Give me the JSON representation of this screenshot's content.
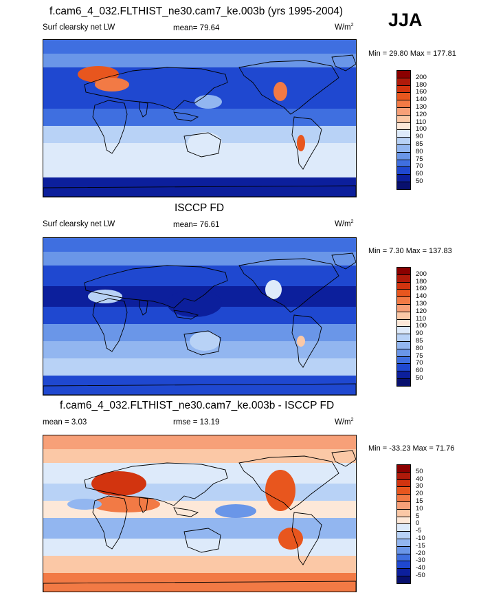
{
  "season": "JJA",
  "panels": [
    {
      "title": "f.cam6_4_032.FLTHIST_ne30.cam7_ke.003b (yrs 1995-2004)",
      "left_label": "Surf clearsky net LW",
      "center_label": "mean=  79.64",
      "units": "W/m",
      "units_sup": "2",
      "minmax": "Min =  29.80 Max = 177.81",
      "colorbar_levels": [
        "200",
        "180",
        "160",
        "140",
        "130",
        "120",
        "110",
        "100",
        "90",
        "85",
        "80",
        "75",
        "70",
        "60",
        "50"
      ]
    },
    {
      "title": "ISCCP FD",
      "left_label": "Surf clearsky net LW",
      "center_label": "mean=  76.61",
      "units": "W/m",
      "units_sup": "2",
      "minmax": "Min =   7.30 Max = 137.83",
      "colorbar_levels": [
        "200",
        "180",
        "160",
        "140",
        "130",
        "120",
        "110",
        "100",
        "90",
        "85",
        "80",
        "75",
        "70",
        "60",
        "50"
      ]
    },
    {
      "title": "f.cam6_4_032.FLTHIST_ne30.cam7_ke.003b - ISCCP FD",
      "left_label": "mean =   3.03",
      "center_label": "rmse =  13.19",
      "units": "W/m",
      "units_sup": "2",
      "minmax": "Min = -33.23 Max =  71.76",
      "colorbar_levels": [
        "50",
        "40",
        "30",
        "20",
        "15",
        "10",
        "5",
        "0",
        "-5",
        "-10",
        "-15",
        "-20",
        "-30",
        "-40",
        "-50"
      ]
    }
  ],
  "colors": {
    "scale": [
      "#8b0000",
      "#b01a0a",
      "#d2340f",
      "#e8561e",
      "#f27a45",
      "#f7a078",
      "#fbc8a6",
      "#fde8d8",
      "#ddeafa",
      "#b8d2f6",
      "#92b6f0",
      "#6a96e8",
      "#3f6fe0",
      "#1f48d0",
      "#0c1f9c",
      "#08106e"
    ],
    "ocean_cool": "#2f5fdc",
    "ocean_mid": "#6f98ea",
    "ocean_pale": "#c9dcf8",
    "land": "#e7efff"
  },
  "chart_data": [
    {
      "type": "heatmap",
      "title": "f.cam6_4_032.FLTHIST_ne30.cam7_ke.003b (yrs 1995-2004)",
      "variable": "Surf clearsky net LW",
      "units": "W/m2",
      "mean": 79.64,
      "min": 29.8,
      "max": 177.81,
      "contour_levels": [
        50,
        60,
        70,
        75,
        80,
        85,
        90,
        100,
        110,
        120,
        130,
        140,
        160,
        180,
        200
      ]
    },
    {
      "type": "heatmap",
      "title": "ISCCP FD",
      "variable": "Surf clearsky net LW",
      "units": "W/m2",
      "mean": 76.61,
      "min": 7.3,
      "max": 137.83,
      "contour_levels": [
        50,
        60,
        70,
        75,
        80,
        85,
        90,
        100,
        110,
        120,
        130,
        140,
        160,
        180,
        200
      ]
    },
    {
      "type": "heatmap",
      "title": "f.cam6_4_032.FLTHIST_ne30.cam7_ke.003b - ISCCP FD",
      "units": "W/m2",
      "mean": 3.03,
      "rmse": 13.19,
      "min": -33.23,
      "max": 71.76,
      "contour_levels": [
        -50,
        -40,
        -30,
        -20,
        -15,
        -10,
        -5,
        0,
        5,
        10,
        15,
        20,
        30,
        40,
        50
      ]
    }
  ]
}
